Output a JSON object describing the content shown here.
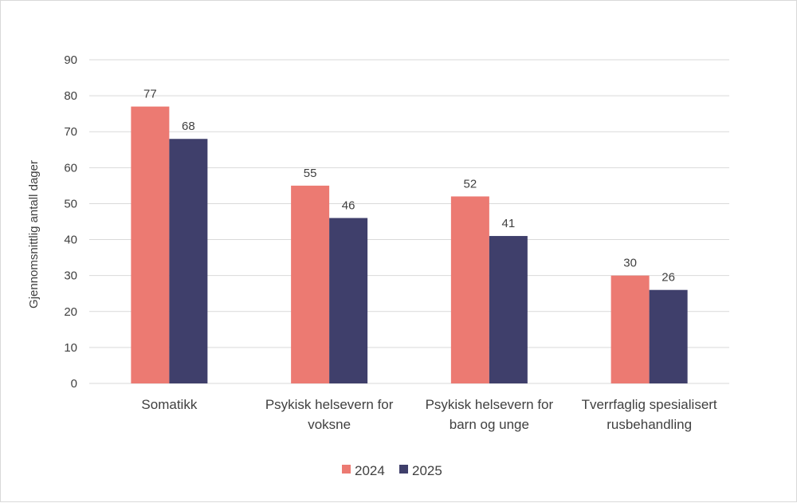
{
  "chart_data": {
    "type": "bar",
    "title": "",
    "xlabel": "",
    "ylabel": "Gjennomsnittlig antall dager",
    "ylim": [
      0,
      90
    ],
    "yticks": [
      0,
      10,
      20,
      30,
      40,
      50,
      60,
      70,
      80,
      90
    ],
    "grid": true,
    "legend_position": "bottom",
    "categories": [
      [
        "Somatikk"
      ],
      [
        "Psykisk helsevern for",
        "voksne"
      ],
      [
        "Psykisk helsevern for",
        "barn og unge"
      ],
      [
        "Tverrfaglig spesialisert",
        "rusbehandling"
      ]
    ],
    "series": [
      {
        "name": "2024",
        "color": "#ec7a72",
        "values": [
          77,
          55,
          52,
          30
        ]
      },
      {
        "name": "2025",
        "color": "#3f3f6b",
        "values": [
          68,
          46,
          41,
          26
        ]
      }
    ],
    "gridline_color": "#d9d9d9",
    "text_color": "#404040"
  }
}
